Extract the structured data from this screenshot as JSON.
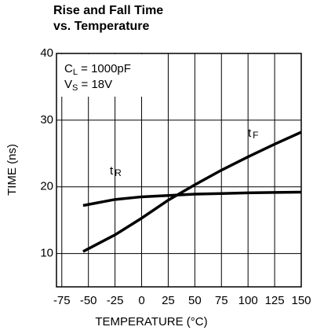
{
  "chart_data": {
    "type": "line",
    "title": [
      "Rise and Fall Time",
      "vs. Temperature"
    ],
    "xlabel": "TEMPERATURE (°C)",
    "ylabel": "TIME (ns)",
    "annotations": [
      {
        "text": "C",
        "sub": "L",
        "rest": " = 1000pF"
      },
      {
        "text": "V",
        "sub": "S",
        "rest": " = 18V"
      }
    ],
    "x": [
      -55,
      -25,
      0,
      25,
      50,
      75,
      100,
      125,
      150
    ],
    "series": [
      {
        "name": "t",
        "sub": "R",
        "color": "#000000",
        "values": [
          17.2,
          18.1,
          18.5,
          18.7,
          18.9,
          19.0,
          19.1,
          19.15,
          19.2
        ]
      },
      {
        "name": "t",
        "sub": "F",
        "color": "#000000",
        "values": [
          10.3,
          12.8,
          15.3,
          18.0,
          20.3,
          22.5,
          24.5,
          26.4,
          28.2
        ]
      }
    ],
    "xlim": [
      -80,
      150
    ],
    "xticks": [
      -75,
      -50,
      -25,
      0,
      25,
      50,
      75,
      100,
      125,
      150
    ],
    "ylim": [
      5,
      40
    ],
    "yticks": [
      10,
      20,
      30,
      40
    ],
    "grid": true
  }
}
